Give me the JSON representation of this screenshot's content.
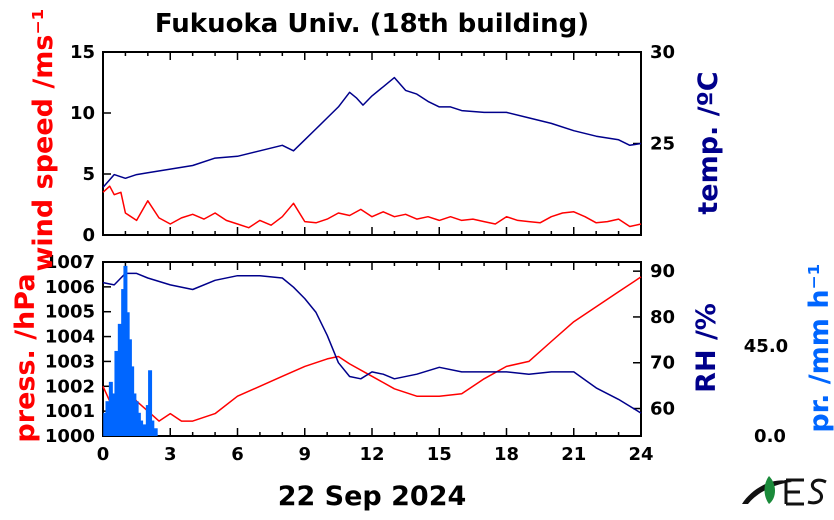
{
  "chart_data": [
    {
      "type": "line",
      "title": "Fukuoka Univ. (18th building)",
      "x_range": [
        0,
        24
      ],
      "x_ticks": [
        0,
        3,
        6,
        9,
        12,
        15,
        18,
        21,
        24
      ],
      "y_left": {
        "label": "wind speed /ms⁻¹",
        "range": [
          0,
          15
        ],
        "ticks": [
          0,
          5,
          10,
          15
        ],
        "color": "#ff0000"
      },
      "y_right": {
        "label": "temp. /ºC",
        "range": [
          20,
          30
        ],
        "ticks": [
          25,
          30
        ],
        "color": "#00008b"
      },
      "series": [
        {
          "name": "wind speed",
          "axis": "left",
          "color": "#ff0000",
          "x": [
            0,
            0.3,
            0.5,
            0.8,
            1,
            1.5,
            2,
            2.5,
            3,
            3.5,
            4,
            4.5,
            5,
            5.5,
            6,
            6.5,
            7,
            7.5,
            8,
            8.5,
            9,
            9.5,
            10,
            10.5,
            11,
            11.5,
            12,
            12.5,
            13,
            13.5,
            14,
            14.5,
            15,
            15.5,
            16,
            16.5,
            17,
            17.5,
            18,
            18.5,
            19,
            19.5,
            20,
            20.5,
            21,
            21.5,
            22,
            22.5,
            23,
            23.5,
            24
          ],
          "y": [
            3.5,
            4,
            3.3,
            3.5,
            1.8,
            1.2,
            2.8,
            1.4,
            0.9,
            1.4,
            1.7,
            1.3,
            1.8,
            1.2,
            0.9,
            0.6,
            1.2,
            0.8,
            1.5,
            2.6,
            1.1,
            1,
            1.3,
            1.8,
            1.6,
            2.1,
            1.5,
            1.9,
            1.5,
            1.7,
            1.3,
            1.5,
            1.2,
            1.5,
            1.2,
            1.3,
            1.1,
            0.9,
            1.5,
            1.2,
            1.1,
            1,
            1.5,
            1.8,
            1.9,
            1.5,
            1,
            1.1,
            1.3,
            0.7,
            0.9
          ]
        },
        {
          "name": "temperature",
          "axis": "right",
          "color": "#00008b",
          "x": [
            0,
            0.5,
            1,
            1.5,
            2,
            3,
            4,
            5,
            6,
            7,
            8,
            8.5,
            9,
            9.5,
            10,
            10.5,
            11,
            11.3,
            11.6,
            12,
            12.5,
            13,
            13.5,
            14,
            14.5,
            15,
            15.5,
            16,
            17,
            18,
            19,
            20,
            21,
            22,
            23,
            23.5,
            24
          ],
          "y": [
            22.6,
            23.3,
            23.1,
            23.3,
            23.4,
            23.6,
            23.8,
            24.2,
            24.3,
            24.6,
            24.9,
            24.6,
            25.2,
            25.8,
            26.4,
            27,
            27.8,
            27.5,
            27.1,
            27.6,
            28.1,
            28.6,
            27.9,
            27.7,
            27.3,
            27,
            27,
            26.8,
            26.7,
            26.7,
            26.4,
            26.1,
            25.7,
            25.4,
            25.2,
            24.9,
            25
          ]
        }
      ]
    },
    {
      "type": "line",
      "x_range": [
        0,
        24
      ],
      "x_ticks": [
        0,
        3,
        6,
        9,
        12,
        15,
        18,
        21,
        24
      ],
      "x_label": "22 Sep 2024",
      "y_left": {
        "label": "press. /hPa",
        "range": [
          1000,
          1007
        ],
        "ticks": [
          1000,
          1001,
          1002,
          1003,
          1004,
          1005,
          1006,
          1007
        ],
        "color": "#ff0000"
      },
      "y_right": {
        "label": "RH /%",
        "range": [
          54,
          92
        ],
        "ticks": [
          60,
          70,
          80,
          90
        ],
        "color": "#00008b"
      },
      "y_far_right": {
        "label": "pr. /mm h⁻¹",
        "ticks": [
          "0.0",
          "45.0"
        ],
        "range": [
          0,
          90
        ],
        "color": "#0066ff"
      },
      "series": [
        {
          "name": "pressure",
          "axis": "left",
          "color": "#ff0000",
          "x": [
            0,
            0.5,
            1,
            1.5,
            2,
            2.5,
            3,
            3.5,
            4,
            5,
            6,
            7,
            8,
            9,
            10,
            10.5,
            11,
            12,
            13,
            14,
            15,
            16,
            17,
            18,
            19,
            20,
            21,
            22,
            23,
            24
          ],
          "y": [
            1002,
            1001,
            1002,
            1001.4,
            1001,
            1000.6,
            1000.9,
            1000.6,
            1000.6,
            1000.9,
            1001.6,
            1002,
            1002.4,
            1002.8,
            1003.1,
            1003.2,
            1002.9,
            1002.4,
            1001.9,
            1001.6,
            1001.6,
            1001.7,
            1002.3,
            1002.8,
            1003,
            1003.8,
            1004.6,
            1005.2,
            1005.8,
            1006.4
          ]
        },
        {
          "name": "relative humidity",
          "axis": "right",
          "color": "#00008b",
          "x": [
            0,
            0.5,
            1,
            1.5,
            2,
            3,
            4,
            5,
            6,
            7,
            8,
            8.5,
            9,
            9.5,
            10,
            10.5,
            11,
            11.5,
            12,
            12.5,
            13,
            14,
            15,
            16,
            17,
            18,
            19,
            20,
            21,
            22,
            23,
            24
          ],
          "y": [
            87.5,
            87,
            89.5,
            89.5,
            88.5,
            87,
            86,
            88,
            89,
            89,
            88.5,
            86.5,
            84,
            81,
            76,
            70,
            67,
            66.5,
            68,
            67.5,
            66.5,
            67.5,
            69,
            68,
            68,
            68,
            67.5,
            68,
            68,
            64.5,
            62,
            59
          ]
        },
        {
          "name": "precipitation",
          "axis": "far_right",
          "type": "bar",
          "color": "#0066ff",
          "x": [
            0.1,
            0.2,
            0.35,
            0.5,
            0.6,
            0.75,
            0.9,
            1.0,
            1.1,
            1.2,
            1.3,
            1.4,
            1.5,
            1.6,
            1.7,
            1.85,
            2.0,
            2.1,
            2.2,
            2.35
          ],
          "y": [
            12,
            18,
            28,
            22,
            44,
            58,
            76,
            88,
            64,
            50,
            36,
            22,
            18,
            12,
            8,
            6,
            16,
            34,
            8,
            4
          ]
        }
      ]
    }
  ]
}
